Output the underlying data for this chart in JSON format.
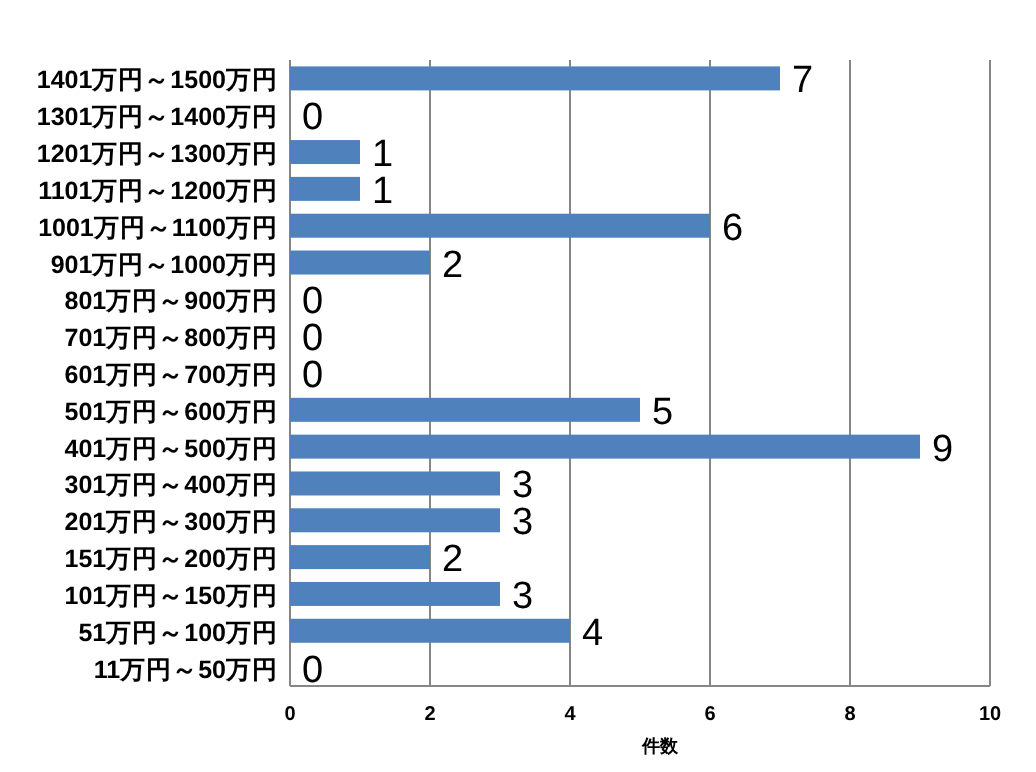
{
  "chart_data": {
    "type": "bar",
    "orientation": "horizontal",
    "xlabel": "件数",
    "categories": [
      "1401万円～1500万円",
      "1301万円～1400万円",
      "1201万円～1300万円",
      "1101万円～1200万円",
      "1001万円～1100万円",
      "901万円～1000万円",
      "801万円～900万円",
      "701万円～800万円",
      "601万円～700万円",
      "501万円～600万円",
      "401万円～500万円",
      "301万円～400万円",
      "201万円～300万円",
      "151万円～200万円",
      "101万円～150万円",
      "51万円～100万円",
      "11万円～50万円"
    ],
    "values": [
      7,
      0,
      1,
      1,
      6,
      2,
      0,
      0,
      0,
      5,
      9,
      3,
      3,
      2,
      3,
      4,
      0
    ],
    "color": "#4f81bd",
    "xlim": [
      0,
      10
    ],
    "xticks": [
      0,
      2,
      4,
      6,
      8,
      10
    ],
    "grid": "x",
    "data_labels": true
  }
}
